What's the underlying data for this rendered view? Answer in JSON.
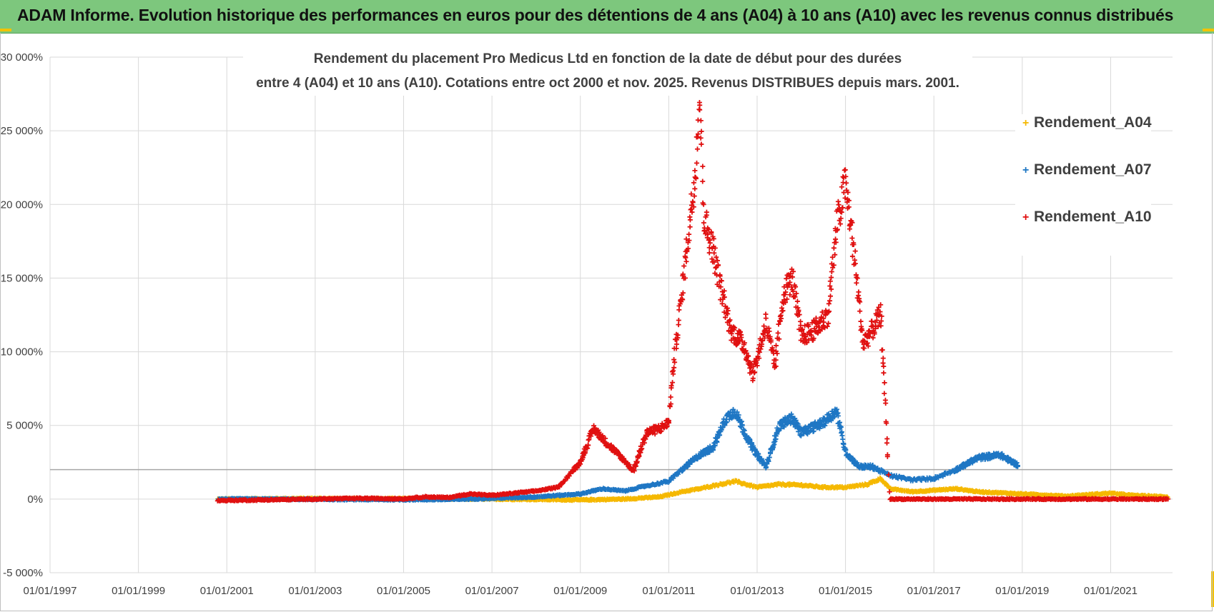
{
  "banner": {
    "title": "ADAM Informe. Evolution historique des performances en euros pour des détentions de 4 ans (A04) à 10 ans (A10) avec les revenus connus distribués",
    "color": "#7dc77d"
  },
  "chart_data": {
    "type": "scatter",
    "marker": "+",
    "title_lines": [
      "Rendement du placement Pro Medicus Ltd en fonction de la date de début pour des durées",
      "entre 4 (A04) et 10 ans (A10). Cotations entre oct 2000 et nov. 2025. Revenus DISTRIBUES depuis mars. 2001."
    ],
    "xlabel": "",
    "ylabel": "",
    "x_range": [
      1997.0,
      2022.4
    ],
    "ylim": [
      -5000,
      30000
    ],
    "y_ticks": [
      -5000,
      0,
      5000,
      10000,
      15000,
      20000,
      25000,
      30000
    ],
    "y_tick_labels": [
      "-5 000%",
      "0%",
      "5 000%",
      "10 000%",
      "15 000%",
      "20 000%",
      "25 000%",
      "30 000%"
    ],
    "x_ticks": [
      1997,
      1999,
      2001,
      2003,
      2005,
      2007,
      2009,
      2011,
      2013,
      2015,
      2017,
      2019,
      2021
    ],
    "x_tick_labels": [
      "01/01/1997",
      "01/01/1999",
      "01/01/2001",
      "01/01/2003",
      "01/01/2005",
      "01/01/2007",
      "01/01/2009",
      "01/01/2011",
      "01/01/2013",
      "01/01/2015",
      "01/01/2017",
      "01/01/2019",
      "01/01/2021"
    ],
    "reference_line_y": 2000,
    "legend_position": "top-right",
    "series": [
      {
        "name": "Rendement_A04",
        "color": "#f5b800",
        "points": [
          [
            2000.8,
            0
          ],
          [
            2002,
            20
          ],
          [
            2003,
            40
          ],
          [
            2004,
            20
          ],
          [
            2005,
            30
          ],
          [
            2006,
            10
          ],
          [
            2007,
            0
          ],
          [
            2008,
            -20
          ],
          [
            2009,
            -60
          ],
          [
            2010,
            0
          ],
          [
            2010.8,
            150
          ],
          [
            2011.3,
            500
          ],
          [
            2011.7,
            700
          ],
          [
            2012,
            900
          ],
          [
            2012.5,
            1200
          ],
          [
            2013,
            800
          ],
          [
            2013.5,
            1000
          ],
          [
            2014,
            950
          ],
          [
            2014.5,
            800
          ],
          [
            2015,
            800
          ],
          [
            2015.5,
            1000
          ],
          [
            2015.8,
            1400
          ],
          [
            2016,
            700
          ],
          [
            2016.5,
            500
          ],
          [
            2017,
            600
          ],
          [
            2017.5,
            700
          ],
          [
            2018,
            500
          ],
          [
            2019,
            350
          ],
          [
            2020,
            200
          ],
          [
            2021,
            400
          ],
          [
            2021.5,
            250
          ],
          [
            2022.3,
            150
          ]
        ]
      },
      {
        "name": "Rendement_A07",
        "color": "#1f77c4",
        "points": [
          [
            2000.8,
            0
          ],
          [
            2002,
            0
          ],
          [
            2003,
            -20
          ],
          [
            2004,
            -30
          ],
          [
            2005,
            -40
          ],
          [
            2006,
            -30
          ],
          [
            2007,
            50
          ],
          [
            2008,
            150
          ],
          [
            2009,
            350
          ],
          [
            2009.5,
            700
          ],
          [
            2010,
            550
          ],
          [
            2010.5,
            900
          ],
          [
            2011,
            1200
          ],
          [
            2011.3,
            2000
          ],
          [
            2011.7,
            3000
          ],
          [
            2012,
            3500
          ],
          [
            2012.3,
            5500
          ],
          [
            2012.5,
            6000
          ],
          [
            2012.8,
            4000
          ],
          [
            2013,
            3000
          ],
          [
            2013.2,
            2200
          ],
          [
            2013.5,
            5000
          ],
          [
            2013.8,
            5500
          ],
          [
            2014,
            4500
          ],
          [
            2014.5,
            5200
          ],
          [
            2014.8,
            6000
          ],
          [
            2015,
            3200
          ],
          [
            2015.3,
            2200
          ],
          [
            2015.6,
            2200
          ],
          [
            2016,
            1600
          ],
          [
            2016.5,
            1300
          ],
          [
            2017,
            1400
          ],
          [
            2017.5,
            2000
          ],
          [
            2018,
            2800
          ],
          [
            2018.5,
            3000
          ],
          [
            2018.9,
            2300
          ]
        ]
      },
      {
        "name": "Rendement_A10",
        "color": "#e01010",
        "points": [
          [
            2000.8,
            -100
          ],
          [
            2002,
            -50
          ],
          [
            2003,
            0
          ],
          [
            2004,
            50
          ],
          [
            2005,
            20
          ],
          [
            2005.5,
            150
          ],
          [
            2006,
            100
          ],
          [
            2006.5,
            350
          ],
          [
            2007,
            250
          ],
          [
            2007.5,
            400
          ],
          [
            2008,
            550
          ],
          [
            2008.5,
            800
          ],
          [
            2009,
            2500
          ],
          [
            2009.3,
            4800
          ],
          [
            2009.6,
            3800
          ],
          [
            2010,
            2600
          ],
          [
            2010.2,
            1900
          ],
          [
            2010.5,
            4500
          ],
          [
            2010.8,
            4800
          ],
          [
            2011,
            5200
          ],
          [
            2011.1,
            9000
          ],
          [
            2011.3,
            14000
          ],
          [
            2011.5,
            19500
          ],
          [
            2011.6,
            22000
          ],
          [
            2011.7,
            27500
          ],
          [
            2011.8,
            19000
          ],
          [
            2012,
            17000
          ],
          [
            2012.2,
            14000
          ],
          [
            2012.4,
            11500
          ],
          [
            2012.7,
            10500
          ],
          [
            2012.9,
            8500
          ],
          [
            2013,
            9500
          ],
          [
            2013.2,
            12000
          ],
          [
            2013.4,
            9000
          ],
          [
            2013.6,
            14000
          ],
          [
            2013.8,
            15000
          ],
          [
            2014,
            11000
          ],
          [
            2014.3,
            11500
          ],
          [
            2014.6,
            12500
          ],
          [
            2014.8,
            18500
          ],
          [
            2015,
            21500
          ],
          [
            2015.2,
            16500
          ],
          [
            2015.4,
            10500
          ],
          [
            2015.6,
            11500
          ],
          [
            2015.8,
            12500
          ],
          [
            2015.9,
            6500
          ],
          [
            2016,
            0
          ],
          [
            2017,
            0
          ],
          [
            2018,
            0
          ],
          [
            2019,
            0
          ],
          [
            2020,
            0
          ],
          [
            2021,
            0
          ],
          [
            2022.3,
            0
          ]
        ]
      }
    ]
  }
}
